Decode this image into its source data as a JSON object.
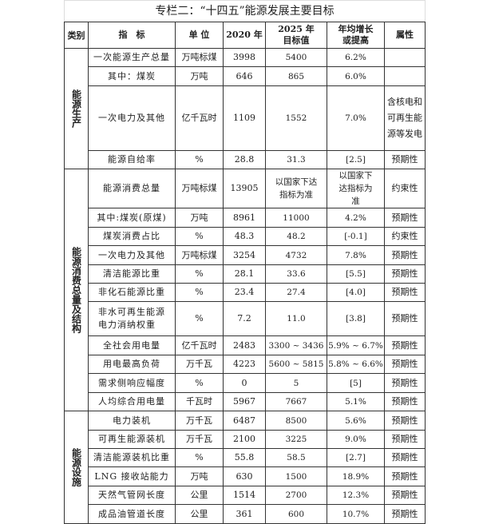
{
  "title": "专栏二：“十四五”能源发展主要目标",
  "headers": [
    "类别",
    "指　标",
    "单 位",
    "2020 年",
    "2025 年\n目标值",
    "年均增长\n或提高",
    "属性"
  ],
  "groups": [
    {
      "category": "能源生产",
      "rows": [
        {
          "indicator": "一次能源生产总量",
          "unit": "万吨标煤",
          "y2020": "3998",
          "y2025": "5400",
          "growth": "6.2%",
          "attr": ""
        },
        {
          "indicator": "其中：煤炭",
          "unit": "万吨",
          "y2020": "646",
          "y2025": "865",
          "growth": "6.0%",
          "attr": ""
        },
        {
          "indicator": "一次电力及其他",
          "unit": "亿千瓦时",
          "y2020": "1109",
          "y2025": "1552",
          "growth": "7.0%",
          "attr": "含核电和可再生能源等发电"
        },
        {
          "indicator": "能源自给率",
          "unit": "%",
          "y2020": "28.8",
          "y2025": "31.3",
          "growth": "[2.5]",
          "attr": "预期性"
        }
      ]
    },
    {
      "category": "能源消费总量及结构",
      "rows": [
        {
          "indicator": "能源消费总量",
          "unit": "万吨标煤",
          "y2020": "13905",
          "y2025": "以国家下达指标为准",
          "growth": "以国家下达指标为准",
          "attr": "约束性"
        },
        {
          "indicator": "其中:煤炭(原煤)",
          "unit": "万吨",
          "y2020": "8961",
          "y2025": "11000",
          "growth": "4.2%",
          "attr": "预期性"
        },
        {
          "indicator": "煤炭消费占比",
          "unit": "%",
          "y2020": "48.3",
          "y2025": "48.2",
          "growth": "[-0.1]",
          "attr": "约束性"
        },
        {
          "indicator": "一次电力及其他",
          "unit": "万吨标煤",
          "y2020": "3254",
          "y2025": "4732",
          "growth": "7.8%",
          "attr": "预期性"
        },
        {
          "indicator": "清洁能源比重",
          "unit": "%",
          "y2020": "28.1",
          "y2025": "33.6",
          "growth": "[5.5]",
          "attr": "预期性"
        },
        {
          "indicator": "非化石能源比重",
          "unit": "%",
          "y2020": "23.4",
          "y2025": "27.4",
          "growth": "[4.0]",
          "attr": "预期性"
        },
        {
          "indicator": "非水可再生能源电力消纳权重",
          "unit": "%",
          "y2020": "7.2",
          "y2025": "11.0",
          "growth": "[3.8]",
          "attr": "预期性"
        },
        {
          "indicator": "全社会用电量",
          "unit": "亿千瓦时",
          "y2020": "2483",
          "y2025": "3300 ~ 3436",
          "growth": "5.9% ~ 6.7%",
          "attr": "预期性"
        },
        {
          "indicator": "用电最高负荷",
          "unit": "万千瓦",
          "y2020": "4223",
          "y2025": "5600 ~ 5815",
          "growth": "5.8% ~ 6.6%",
          "attr": "预期性"
        },
        {
          "indicator": "需求侧响应幅度",
          "unit": "%",
          "y2020": "0",
          "y2025": "5",
          "growth": "[5]",
          "attr": "预期性"
        },
        {
          "indicator": "人均综合用电量",
          "unit": "千瓦时",
          "y2020": "5967",
          "y2025": "7667",
          "growth": "5.1%",
          "attr": "预期性"
        }
      ]
    },
    {
      "category": "能源设施",
      "rows": [
        {
          "indicator": "电力装机",
          "unit": "万千瓦",
          "y2020": "6487",
          "y2025": "8500",
          "growth": "5.6%",
          "attr": "预期性"
        },
        {
          "indicator": "可再生能源装机",
          "unit": "万千瓦",
          "y2020": "2100",
          "y2025": "3225",
          "growth": "9.0%",
          "attr": "预期性"
        },
        {
          "indicator": "清洁能源装机比重",
          "unit": "%",
          "y2020": "55.8",
          "y2025": "58.5",
          "growth": "[2.7]",
          "attr": "预期性"
        },
        {
          "indicator": "LNG 接收站能力",
          "unit": "万吨",
          "y2020": "630",
          "y2025": "1500",
          "growth": "18.9%",
          "attr": "预期性"
        },
        {
          "indicator": "天然气管网长度",
          "unit": "公里",
          "y2020": "1514",
          "y2025": "2700",
          "growth": "12.3%",
          "attr": "预期性"
        },
        {
          "indicator": "成品油管道长度",
          "unit": "公里",
          "y2020": "361",
          "y2025": "600",
          "growth": "10.7%",
          "attr": "预期性"
        }
      ]
    }
  ]
}
